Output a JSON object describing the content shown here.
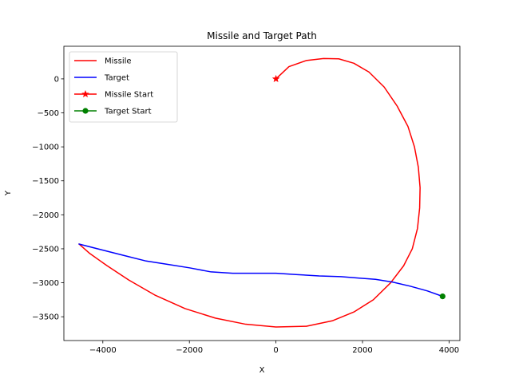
{
  "chart_data": {
    "type": "line",
    "title": "Missile and Target Path",
    "xlabel": "X",
    "ylabel": "Y",
    "xlim": [
      -4900,
      4250
    ],
    "ylim": [
      -3850,
      480
    ],
    "xticks": [
      -4000,
      -2000,
      0,
      2000,
      4000
    ],
    "yticks": [
      0,
      -500,
      -1000,
      -1500,
      -2000,
      -2500,
      -3000,
      -3500
    ],
    "xtick_labels": [
      "−4000",
      "−2000",
      "0",
      "2000",
      "4000"
    ],
    "ytick_labels": [
      "0",
      "−500",
      "−1000",
      "−1500",
      "−2000",
      "−2500",
      "−3000",
      "−3500"
    ],
    "grid": false,
    "legend_position": "top-left",
    "series": [
      {
        "name": "Missile",
        "color": "#ff0000",
        "marker": "none",
        "x": [
          0,
          300,
          700,
          1100,
          1450,
          1800,
          2150,
          2500,
          2800,
          3050,
          3200,
          3290,
          3330,
          3320,
          3270,
          3150,
          2950,
          2650,
          2250,
          1800,
          1300,
          700,
          0,
          -700,
          -1400,
          -2100,
          -2800,
          -3400,
          -3900,
          -4300,
          -4550
        ],
        "y": [
          0,
          180,
          270,
          300,
          295,
          230,
          100,
          -120,
          -400,
          -700,
          -1000,
          -1300,
          -1600,
          -1900,
          -2200,
          -2500,
          -2750,
          -3000,
          -3250,
          -3430,
          -3560,
          -3640,
          -3650,
          -3610,
          -3520,
          -3380,
          -3180,
          -2960,
          -2750,
          -2570,
          -2430
        ]
      },
      {
        "name": "Target",
        "color": "#0000ff",
        "marker": "none",
        "x": [
          3850,
          3500,
          3100,
          2700,
          2300,
          1900,
          1500,
          1000,
          500,
          0,
          -500,
          -1000,
          -1500,
          -2000,
          -2500,
          -3000,
          -3500,
          -4000,
          -4550
        ],
        "y": [
          -3200,
          -3120,
          -3050,
          -2990,
          -2950,
          -2930,
          -2910,
          -2900,
          -2880,
          -2860,
          -2860,
          -2860,
          -2840,
          -2780,
          -2730,
          -2680,
          -2600,
          -2520,
          -2430
        ]
      },
      {
        "name": "Missile Start",
        "color": "#ff0000",
        "marker": "star",
        "x": [
          0
        ],
        "y": [
          0
        ]
      },
      {
        "name": "Target Start",
        "color": "#008000",
        "marker": "circle",
        "x": [
          3850
        ],
        "y": [
          -3200
        ]
      }
    ]
  }
}
